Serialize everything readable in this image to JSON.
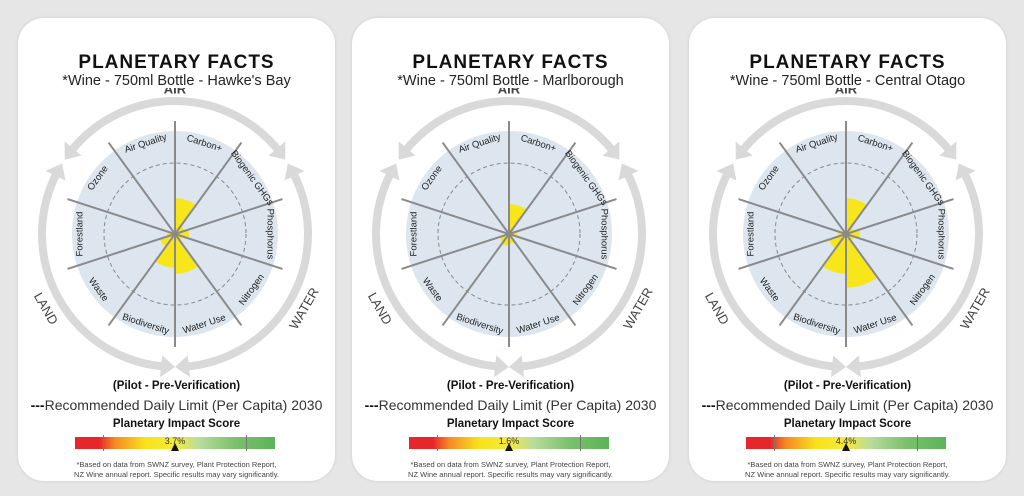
{
  "chart_data": [
    {
      "type": "radial-bar",
      "title": "PLANETARY FACTS",
      "subtitle": "*Wine - 750ml Bottle - Hawke's Bay",
      "score": "3.7%",
      "categories": [
        "Carbon+",
        "Biogenic GHGs",
        "Phosphorus",
        "Nitrogen",
        "Water Use",
        "Biodiversity",
        "Waste",
        "Forestland",
        "Ozone",
        "Air Quality"
      ],
      "values": [
        0.18,
        0.05,
        0.07,
        0.04,
        0.2,
        0.17,
        0.08,
        0.04,
        0.01,
        0.02
      ]
    },
    {
      "type": "radial-bar",
      "title": "PLANETARY FACTS",
      "subtitle": "*Wine - 750ml Bottle - Marlborough",
      "score": "1.6%",
      "categories": [
        "Carbon+",
        "Biogenic GHGs",
        "Phosphorus",
        "Nitrogen",
        "Water Use",
        "Biodiversity",
        "Waste",
        "Forestland",
        "Ozone",
        "Air Quality"
      ],
      "values": [
        0.15,
        0.03,
        0.04,
        0.02,
        0.05,
        0.06,
        0.05,
        0.02,
        0.01,
        0.01
      ]
    },
    {
      "type": "radial-bar",
      "title": "PLANETARY FACTS",
      "subtitle": "*Wine - 750ml Bottle - Central Otago",
      "score": "4.4%",
      "categories": [
        "Carbon+",
        "Biogenic GHGs",
        "Phosphorus",
        "Nitrogen",
        "Water Use",
        "Biodiversity",
        "Waste",
        "Forestland",
        "Ozone",
        "Air Quality"
      ],
      "values": [
        0.18,
        0.04,
        0.07,
        0.04,
        0.27,
        0.2,
        0.09,
        0.04,
        0.01,
        0.02
      ]
    }
  ],
  "groups": {
    "air": "AIR",
    "land": "LAND",
    "water": "WATER"
  },
  "pilot": "(Pilot - Pre-Verification)",
  "limit_dashes": "---",
  "limit_label": "Recommended Daily Limit (Per Capita) 2030",
  "score_title": "Planetary Impact Score",
  "footnote_1": "*Based on data from SWNZ survey, Plant Protection Report,",
  "footnote_2": "NZ Wine annual report. Specific results may vary significantly.",
  "colors": {
    "wedge": "#f7e619",
    "earth": "#dde6ef",
    "ring": "#d9d9d9",
    "spoke": "#8a8a8a"
  }
}
